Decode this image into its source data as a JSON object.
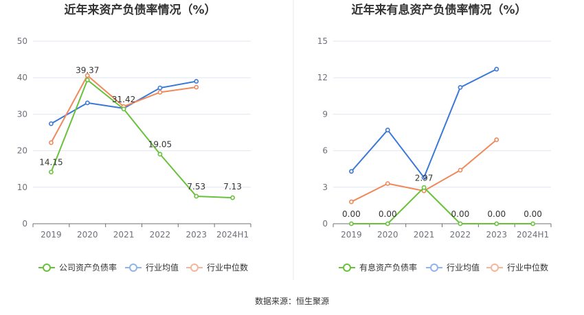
{
  "colors": {
    "company": "#67c23a",
    "industry_avg": "#3a78d8",
    "industry_median": "#f0885a",
    "legend_avg": "#8fb4ea",
    "legend_median": "#f5b59a",
    "divider": "#e8e8e8"
  },
  "chart_data": [
    {
      "type": "line",
      "title": "近年来资产负债率情况（%）",
      "categories": [
        "2019",
        "2020",
        "2021",
        "2022",
        "2023",
        "2024H1"
      ],
      "ylim": [
        0,
        50
      ],
      "yticks": [
        "0",
        "10",
        "20",
        "30",
        "40",
        "50"
      ],
      "grid": true,
      "legend_position": "bottom",
      "series": [
        {
          "name": "公司资产负债率",
          "color_key": "company",
          "values": [
            14.15,
            39.37,
            31.42,
            19.05,
            7.53,
            7.13
          ],
          "labels": [
            "14.15",
            "39.37",
            "31.42",
            "19.05",
            "7.53",
            "7.13"
          ]
        },
        {
          "name": "行业均值",
          "color_key": "industry_avg",
          "values": [
            27.4,
            33.1,
            31.6,
            37.2,
            39.0,
            null
          ]
        },
        {
          "name": "行业中位数",
          "color_key": "industry_median",
          "values": [
            22.2,
            40.6,
            32.1,
            36.0,
            37.4,
            null
          ]
        }
      ]
    },
    {
      "type": "line",
      "title": "近年来有息资产负债率情况（%）",
      "categories": [
        "2019",
        "2020",
        "2021",
        "2022",
        "2023",
        "2024H1"
      ],
      "ylim": [
        0,
        15
      ],
      "yticks": [
        "0",
        "3",
        "6",
        "9",
        "12",
        "15"
      ],
      "grid": true,
      "legend_position": "bottom",
      "series": [
        {
          "name": "有息资产负债率",
          "color_key": "company",
          "values": [
            0.0,
            0.0,
            2.97,
            0.0,
            0.0,
            0.0
          ],
          "labels": [
            "0.00",
            "0.00",
            "2.97",
            "0.00",
            "0.00",
            "0.00"
          ]
        },
        {
          "name": "行业均值",
          "color_key": "industry_avg",
          "values": [
            4.3,
            7.7,
            3.8,
            11.2,
            12.7,
            null
          ]
        },
        {
          "name": "行业中位数",
          "color_key": "industry_median",
          "values": [
            1.8,
            3.3,
            2.7,
            4.4,
            6.9,
            null
          ]
        }
      ]
    }
  ],
  "footer": {
    "source": "数据来源：恒生聚源"
  }
}
